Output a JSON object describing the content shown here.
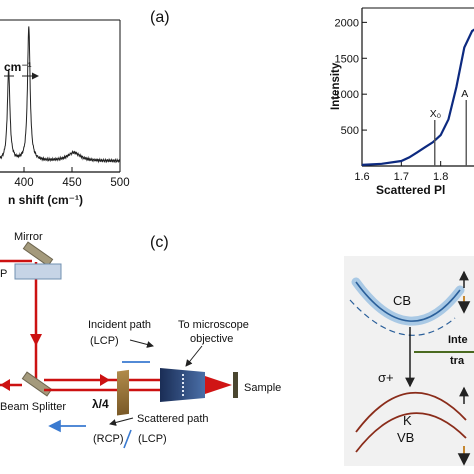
{
  "panel_a": {
    "label": "(a)",
    "xlabel": "n shift (cm⁻¹)",
    "annotation": "cm⁻¹",
    "xticks": [
      "400",
      "450",
      "500"
    ]
  },
  "panel_b": {
    "ylabel": "Intensity",
    "xlabel": "Scattered Pl",
    "yticks": [
      "500",
      "1000",
      "1500",
      "2000"
    ],
    "xticks": [
      "1.6",
      "1.7",
      "1.8"
    ],
    "marker_x0": "X₀",
    "marker_a": "A"
  },
  "panel_c": {
    "label": "(c)",
    "mirror": "Mirror",
    "incident_path": "Incident path",
    "lcp_top": "(LCP)",
    "to_objective_1": "To microscope",
    "to_objective_2": "objective",
    "sample": "Sample",
    "beam_splitter": "Beam Splitter",
    "quarter_wave": "λ/4",
    "scattered_path": "Scattered path",
    "rcp": "(RCP)",
    "lcp_bottom": "(LCP)",
    "p_fragment": "P"
  },
  "panel_d": {
    "cb": "CB",
    "sigma": "σ+",
    "k": "K",
    "vb": "VB",
    "inter_1": "Inte",
    "inter_2": "tra"
  },
  "chart_data": [
    {
      "type": "line",
      "panel": "a",
      "xlabel": "n shift (cm⁻¹)",
      "xlim": [
        375,
        500
      ],
      "x_ticks": [
        400,
        450,
        500
      ],
      "peaks": [
        {
          "x": 384,
          "relative_height": 0.64
        },
        {
          "x": 405,
          "relative_height": 0.95
        },
        {
          "x": 452,
          "relative_height": 0.06
        }
      ]
    },
    {
      "type": "line",
      "panel": "b",
      "ylabel": "Intensity",
      "xlabel": "Scattered Pl",
      "xlim": [
        1.6,
        1.9
      ],
      "ylim": [
        0,
        2200
      ],
      "x": [
        1.6,
        1.65,
        1.7,
        1.72,
        1.74,
        1.76,
        1.78,
        1.8,
        1.82,
        1.84,
        1.86,
        1.88,
        1.9
      ],
      "y": [
        15,
        30,
        70,
        120,
        190,
        260,
        330,
        430,
        650,
        1100,
        1650,
        1880,
        1950
      ],
      "series": [
        {
          "color": "#0d2a80"
        }
      ],
      "markers": [
        {
          "label": "X₀",
          "x": 1.785
        },
        {
          "label": "A",
          "x": 1.865
        }
      ]
    }
  ]
}
